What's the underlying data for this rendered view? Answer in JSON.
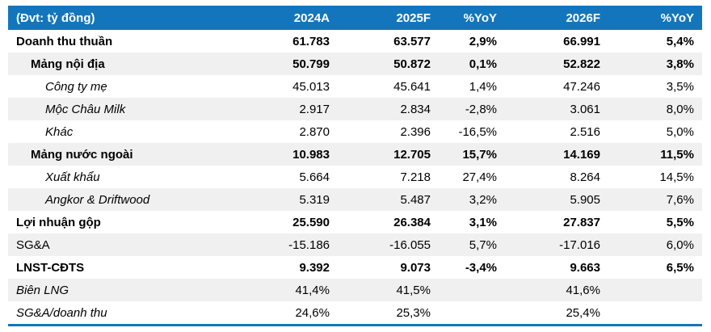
{
  "colors": {
    "header_blue": "#1376BC",
    "stripe_gray": "#F0F0F0",
    "header_text": "#ffffff",
    "body_text": "#000000",
    "bottom_rule_blue": "#1376BC"
  },
  "table": {
    "header": {
      "label": "(Đvt: tỷ đồng)",
      "cols": [
        "2024A",
        "2025F",
        "%YoY",
        "2026F",
        "%YoY"
      ]
    },
    "rows": [
      {
        "label": "Doanh thu thuần",
        "indent": 0,
        "bold": true,
        "italic": false,
        "values": [
          "61.783",
          "63.577",
          "2,9%",
          "66.991",
          "5,4%"
        ]
      },
      {
        "label": "Mảng nội địa",
        "indent": 1,
        "bold": true,
        "italic": false,
        "values": [
          "50.799",
          "50.872",
          "0,1%",
          "52.822",
          "3,8%"
        ]
      },
      {
        "label": "Công ty mẹ",
        "indent": 2,
        "bold": false,
        "italic": true,
        "values": [
          "45.013",
          "45.641",
          "1,4%",
          "47.246",
          "3,5%"
        ]
      },
      {
        "label": "Mộc Châu Milk",
        "indent": 2,
        "bold": false,
        "italic": true,
        "values": [
          "2.917",
          "2.834",
          "-2,8%",
          "3.061",
          "8,0%"
        ]
      },
      {
        "label": "Khác",
        "indent": 2,
        "bold": false,
        "italic": true,
        "values": [
          "2.870",
          "2.396",
          "-16,5%",
          "2.516",
          "5,0%"
        ]
      },
      {
        "label": "Mảng nước ngoài",
        "indent": 1,
        "bold": true,
        "italic": false,
        "values": [
          "10.983",
          "12.705",
          "15,7%",
          "14.169",
          "11,5%"
        ]
      },
      {
        "label": "Xuất khẩu",
        "indent": 2,
        "bold": false,
        "italic": true,
        "values": [
          "5.664",
          "7.218",
          "27,4%",
          "8.264",
          "14,5%"
        ]
      },
      {
        "label": "Angkor & Driftwood",
        "indent": 2,
        "bold": false,
        "italic": true,
        "values": [
          "5.319",
          "5.487",
          "3,2%",
          "5.905",
          "7,6%"
        ]
      },
      {
        "label": "Lợi nhuận gộp",
        "indent": 0,
        "bold": true,
        "italic": false,
        "values": [
          "25.590",
          "26.384",
          "3,1%",
          "27.837",
          "5,5%"
        ]
      },
      {
        "label": "SG&A",
        "indent": 0,
        "bold": false,
        "italic": false,
        "values": [
          "-15.186",
          "-16.055",
          "5,7%",
          "-17.016",
          "6,0%"
        ]
      },
      {
        "label": "LNST-CĐTS",
        "indent": 0,
        "bold": true,
        "italic": false,
        "values": [
          "9.392",
          "9.073",
          "-3,4%",
          "9.663",
          "6,5%"
        ]
      },
      {
        "label": "Biên LNG",
        "indent": 0,
        "bold": false,
        "italic": true,
        "values": [
          "41,4%",
          "41,5%",
          "",
          "41,6%",
          ""
        ]
      },
      {
        "label": "SG&A/doanh thu",
        "indent": 0,
        "bold": false,
        "italic": true,
        "values": [
          "24,6%",
          "25,3%",
          "",
          "25,4%",
          ""
        ]
      }
    ]
  }
}
